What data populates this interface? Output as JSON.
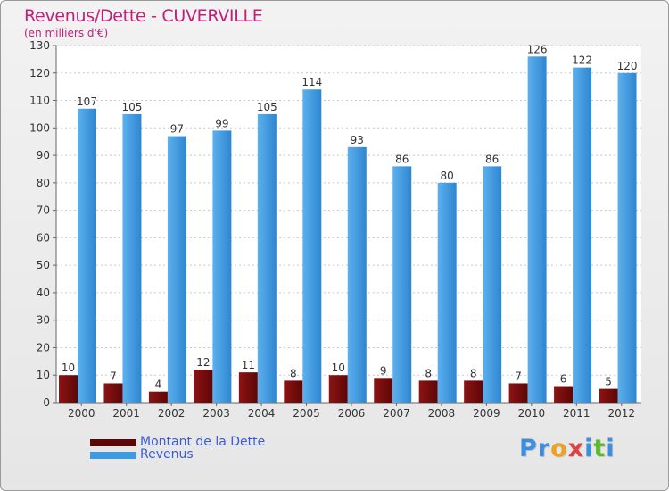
{
  "title": "Revenus/Dette - CUVERVILLE",
  "subtitle": "(en milliers d'€)",
  "logo": {
    "text": "Proxiti",
    "letters": [
      {
        "ch": "P",
        "color": "#3c8fe0"
      },
      {
        "ch": "r",
        "color": "#3c8fe0"
      },
      {
        "ch": "o",
        "color": "#f0a020"
      },
      {
        "ch": "x",
        "color": "#e04040"
      },
      {
        "ch": "i",
        "color": "#3c8fe0"
      },
      {
        "ch": "t",
        "color": "#5cb82e"
      },
      {
        "ch": "i",
        "color": "#3c8fe0"
      }
    ]
  },
  "colors": {
    "dette": "#7a0a0a",
    "revenus": "#3d9ae0",
    "title": "#c0207a",
    "legend_text": "#3b5bd6"
  },
  "chart_data": {
    "type": "bar",
    "title": "Revenus/Dette - CUVERVILLE",
    "subtitle": "(en milliers d'€)",
    "xlabel": "",
    "ylabel": "",
    "ylim": [
      0,
      130
    ],
    "yticks": [
      0,
      10,
      20,
      30,
      40,
      50,
      60,
      70,
      80,
      90,
      100,
      110,
      120,
      130
    ],
    "grid": true,
    "legend_position": "bottom-left",
    "categories": [
      "2000",
      "2001",
      "2002",
      "2003",
      "2004",
      "2005",
      "2006",
      "2007",
      "2008",
      "2009",
      "2010",
      "2011",
      "2012"
    ],
    "series": [
      {
        "name": "Montant de la Dette",
        "color": "#7a0a0a",
        "values": [
          10,
          7,
          4,
          12,
          11,
          8,
          10,
          9,
          8,
          8,
          7,
          6,
          5
        ]
      },
      {
        "name": "Revenus",
        "color": "#3d9ae0",
        "values": [
          107,
          105,
          97,
          99,
          105,
          114,
          93,
          86,
          80,
          86,
          126,
          122,
          120
        ]
      }
    ]
  }
}
